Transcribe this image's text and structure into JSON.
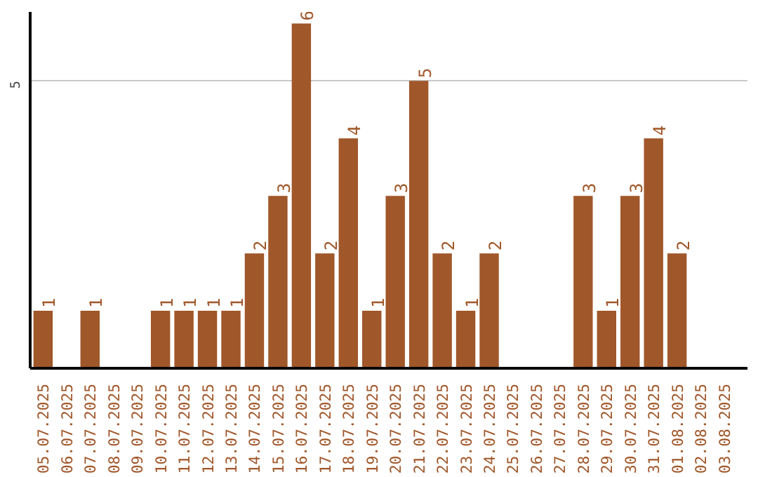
{
  "chart_data": {
    "type": "bar",
    "categories": [
      "05.07.2025",
      "06.07.2025",
      "07.07.2025",
      "08.07.2025",
      "09.07.2025",
      "10.07.2025",
      "11.07.2025",
      "12.07.2025",
      "13.07.2025",
      "14.07.2025",
      "15.07.2025",
      "16.07.2025",
      "17.07.2025",
      "18.07.2025",
      "19.07.2025",
      "20.07.2025",
      "21.07.2025",
      "22.07.2025",
      "23.07.2025",
      "24.07.2025",
      "25.07.2025",
      "26.07.2025",
      "27.07.2025",
      "28.07.2025",
      "29.07.2025",
      "30.07.2025",
      "31.07.2025",
      "01.08.2025",
      "02.08.2025",
      "03.08.2025"
    ],
    "values": [
      1,
      0,
      1,
      0,
      0,
      1,
      1,
      1,
      1,
      2,
      3,
      6,
      2,
      4,
      1,
      3,
      5,
      2,
      1,
      2,
      0,
      0,
      0,
      3,
      1,
      3,
      4,
      2,
      0,
      0
    ],
    "value_labels": [
      "1",
      null,
      "1",
      null,
      null,
      "1",
      "1",
      "1",
      "1",
      "2",
      "3",
      "6",
      "2",
      "4",
      "1",
      "3",
      "5",
      "2",
      "1",
      "2",
      null,
      null,
      null,
      "3",
      "1",
      "3",
      "4",
      "2",
      null,
      null
    ],
    "color": "#a0572a",
    "ylim": [
      0,
      6.2
    ],
    "yticks": [
      5
    ],
    "grid": "y"
  }
}
